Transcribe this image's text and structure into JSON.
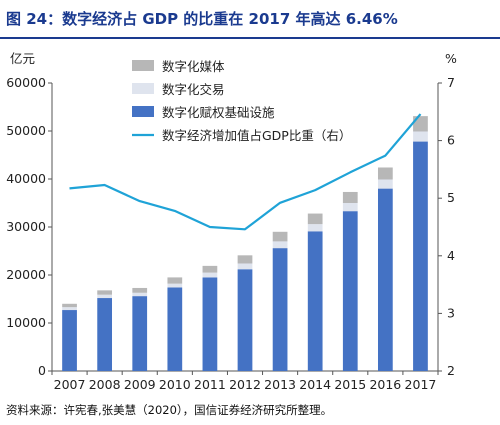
{
  "figure": {
    "title": "图 24：数字经济占 GDP 的比重在 2017 年高达 6.46%",
    "source": "资料来源：许宪春,张美慧（2020），国信证券经济研究所整理。"
  },
  "chart_data": {
    "type": "bar",
    "stacked": true,
    "categories": [
      "2007",
      "2008",
      "2009",
      "2010",
      "2011",
      "2012",
      "2013",
      "2014",
      "2015",
      "2016",
      "2017"
    ],
    "y_left_unit": "亿元",
    "y_right_unit": "%",
    "ylim_left": [
      0,
      60000
    ],
    "yticks_left": [
      0,
      10000,
      20000,
      30000,
      40000,
      50000,
      60000
    ],
    "ylim_right": [
      2,
      7
    ],
    "yticks_right": [
      2,
      3,
      4,
      5,
      6,
      7
    ],
    "series": [
      {
        "name": "数字化赋权基础设施",
        "type": "bar",
        "axis": "left",
        "color": "#4472c4",
        "values": [
          12700,
          15200,
          15600,
          17400,
          19500,
          21200,
          25600,
          29100,
          33300,
          38000,
          47800
        ]
      },
      {
        "name": "数字化交易",
        "type": "bar",
        "axis": "left",
        "color": "#dfe4ee",
        "values": [
          600,
          700,
          700,
          800,
          1000,
          1200,
          1400,
          1500,
          1700,
          1900,
          2100
        ]
      },
      {
        "name": "数字化媒体",
        "type": "bar",
        "axis": "left",
        "color": "#b7b7b7",
        "values": [
          700,
          900,
          1000,
          1300,
          1400,
          1700,
          2000,
          2200,
          2300,
          2500,
          3200
        ]
      },
      {
        "name": "数字经济增加值占GDP比重（右）",
        "type": "line",
        "axis": "right",
        "color": "#1fa3d7",
        "values": [
          5.17,
          5.23,
          4.95,
          4.78,
          4.5,
          4.46,
          4.92,
          5.14,
          5.45,
          5.74,
          6.46
        ]
      }
    ],
    "legend_order": [
      "数字化媒体",
      "数字化交易",
      "数字化赋权基础设施",
      "数字经济增加值占GDP比重（右）"
    ],
    "legend_position": "top-left",
    "grid": false
  }
}
